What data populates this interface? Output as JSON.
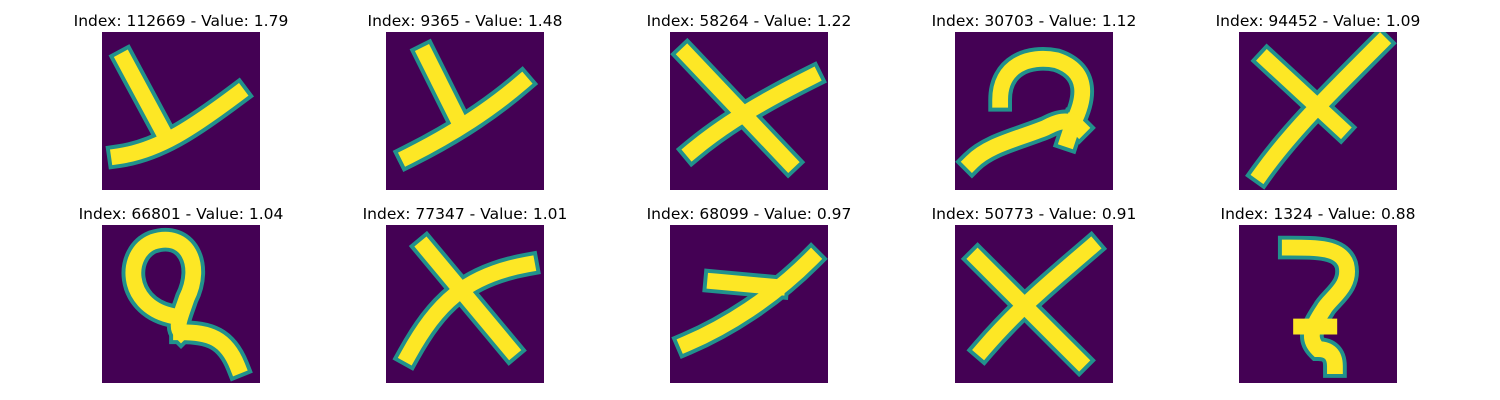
{
  "figure": {
    "background": "#ffffff",
    "colormap": {
      "name": "viridis",
      "low": "#440154",
      "mid": "#21918c",
      "high": "#fde725"
    },
    "panels": [
      {
        "title": "Index: 112669 - Value: 1.79",
        "index": 112669,
        "value": 1.79,
        "glyph": "y"
      },
      {
        "title": "Index: 9365 - Value: 1.48",
        "index": 9365,
        "value": 1.48,
        "glyph": "y"
      },
      {
        "title": "Index: 58264 - Value: 1.22",
        "index": 58264,
        "value": 1.22,
        "glyph": "x"
      },
      {
        "title": "Index: 30703 - Value: 1.12",
        "index": 30703,
        "value": 1.12,
        "glyph": "curl"
      },
      {
        "title": "Index: 94452 - Value: 1.09",
        "index": 94452,
        "value": 1.09,
        "glyph": "x"
      },
      {
        "title": "Index: 66801 - Value: 1.04",
        "index": 66801,
        "value": 1.04,
        "glyph": "loop"
      },
      {
        "title": "Index: 77347 - Value: 1.01",
        "index": 77347,
        "value": 1.01,
        "glyph": "x"
      },
      {
        "title": "Index: 68099 - Value: 0.97",
        "index": 68099,
        "value": 0.97,
        "glyph": "y"
      },
      {
        "title": "Index: 50773 - Value: 0.91",
        "index": 50773,
        "value": 0.91,
        "glyph": "x"
      },
      {
        "title": "Index: 1324 - Value: 0.88",
        "index": 1324,
        "value": 0.88,
        "glyph": "hook"
      }
    ]
  }
}
